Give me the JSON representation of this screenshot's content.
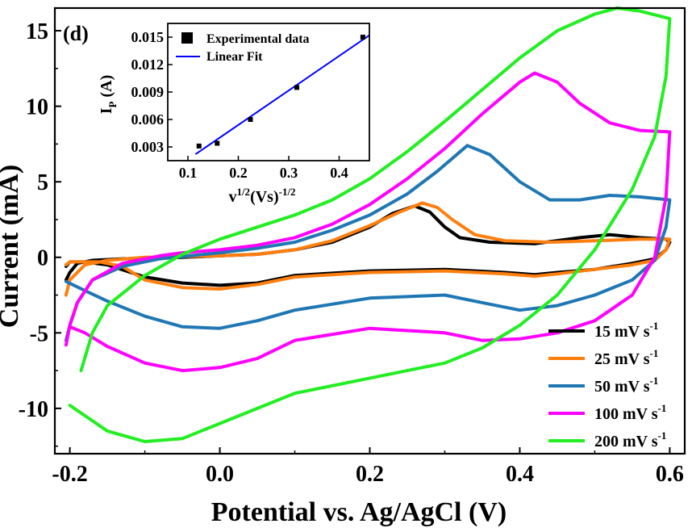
{
  "panel_label": "(d)",
  "chart_data": [
    {
      "type": "line",
      "xlabel": "Potential vs. Ag/AgCl (V)",
      "ylabel": "Current (mA)",
      "xlim": [
        -0.22,
        0.62
      ],
      "ylim": [
        -13,
        16.5
      ],
      "xticks": [
        -0.2,
        0.0,
        0.2,
        0.4,
        0.6
      ],
      "xtick_labels": [
        "-0.2",
        "0.0",
        "0.2",
        "0.4",
        "0.6"
      ],
      "yticks": [
        -10,
        -5,
        0,
        5,
        10,
        15
      ],
      "ytick_labels": [
        "-10",
        "-5",
        "0",
        "5",
        "10",
        "15"
      ],
      "legend": {
        "placement": "bottom-right"
      },
      "series": [
        {
          "name": "15 mV s",
          "sup": "-1",
          "color": "#000000",
          "points": [
            [
              -0.205,
              -1.5
            ],
            [
              -0.2,
              -1.0
            ],
            [
              -0.19,
              -0.4
            ],
            [
              -0.17,
              -0.2
            ],
            [
              -0.13,
              -0.1
            ],
            [
              -0.05,
              0.0
            ],
            [
              0.0,
              0.1
            ],
            [
              0.05,
              0.2
            ],
            [
              0.1,
              0.5
            ],
            [
              0.15,
              1.0
            ],
            [
              0.2,
              2.0
            ],
            [
              0.23,
              2.9
            ],
            [
              0.26,
              3.4
            ],
            [
              0.28,
              3.0
            ],
            [
              0.3,
              2.0
            ],
            [
              0.32,
              1.3
            ],
            [
              0.36,
              1.0
            ],
            [
              0.42,
              0.9
            ],
            [
              0.48,
              1.3
            ],
            [
              0.52,
              1.5
            ],
            [
              0.56,
              1.3
            ],
            [
              0.595,
              1.2
            ],
            [
              0.6,
              1.0
            ],
            [
              0.595,
              0.5
            ],
            [
              0.58,
              -0.1
            ],
            [
              0.55,
              -0.4
            ],
            [
              0.5,
              -0.8
            ],
            [
              0.45,
              -1.0
            ],
            [
              0.42,
              -1.15
            ],
            [
              0.38,
              -1.0
            ],
            [
              0.3,
              -0.8
            ],
            [
              0.2,
              -0.9
            ],
            [
              0.1,
              -1.2
            ],
            [
              0.05,
              -1.7
            ],
            [
              0.0,
              -1.85
            ],
            [
              -0.05,
              -1.7
            ],
            [
              -0.1,
              -1.3
            ],
            [
              -0.15,
              -0.5
            ],
            [
              -0.18,
              -0.3
            ],
            [
              -0.2,
              -0.3
            ],
            [
              -0.205,
              -0.6
            ]
          ]
        },
        {
          "name": "25 mV s",
          "sup": "-1",
          "color": "#ff7f0e",
          "points": [
            [
              -0.205,
              -2.5
            ],
            [
              -0.2,
              -1.5
            ],
            [
              -0.18,
              -0.5
            ],
            [
              -0.15,
              -0.2
            ],
            [
              -0.1,
              0.0
            ],
            [
              -0.05,
              0.05
            ],
            [
              0.0,
              0.1
            ],
            [
              0.05,
              0.2
            ],
            [
              0.1,
              0.5
            ],
            [
              0.15,
              1.1
            ],
            [
              0.2,
              2.1
            ],
            [
              0.24,
              3.0
            ],
            [
              0.27,
              3.6
            ],
            [
              0.29,
              3.3
            ],
            [
              0.31,
              2.5
            ],
            [
              0.34,
              1.5
            ],
            [
              0.38,
              1.1
            ],
            [
              0.44,
              1.0
            ],
            [
              0.5,
              1.1
            ],
            [
              0.56,
              1.2
            ],
            [
              0.6,
              1.2
            ],
            [
              0.595,
              0.5
            ],
            [
              0.58,
              -0.2
            ],
            [
              0.55,
              -0.5
            ],
            [
              0.5,
              -0.8
            ],
            [
              0.45,
              -1.1
            ],
            [
              0.42,
              -1.25
            ],
            [
              0.38,
              -1.1
            ],
            [
              0.3,
              -0.9
            ],
            [
              0.2,
              -1.0
            ],
            [
              0.1,
              -1.3
            ],
            [
              0.05,
              -1.8
            ],
            [
              0.0,
              -2.1
            ],
            [
              -0.05,
              -2.0
            ],
            [
              -0.1,
              -1.5
            ],
            [
              -0.13,
              -0.6
            ],
            [
              -0.16,
              -0.3
            ],
            [
              -0.2,
              -0.3
            ],
            [
              -0.205,
              -0.5
            ]
          ]
        },
        {
          "name": "50 mV s",
          "sup": "-1",
          "color": "#1f77b4",
          "points": [
            [
              -0.205,
              -5.5
            ],
            [
              -0.2,
              -4.5
            ],
            [
              -0.19,
              -3.0
            ],
            [
              -0.17,
              -1.5
            ],
            [
              -0.13,
              -0.6
            ],
            [
              -0.08,
              -0.1
            ],
            [
              -0.03,
              0.15
            ],
            [
              0.0,
              0.3
            ],
            [
              0.05,
              0.6
            ],
            [
              0.1,
              1.0
            ],
            [
              0.15,
              1.8
            ],
            [
              0.2,
              2.8
            ],
            [
              0.25,
              4.2
            ],
            [
              0.29,
              5.7
            ],
            [
              0.33,
              7.4
            ],
            [
              0.36,
              6.8
            ],
            [
              0.4,
              5.0
            ],
            [
              0.44,
              3.8
            ],
            [
              0.48,
              3.8
            ],
            [
              0.52,
              4.1
            ],
            [
              0.56,
              4.0
            ],
            [
              0.6,
              3.8
            ],
            [
              0.595,
              2.0
            ],
            [
              0.58,
              -0.2
            ],
            [
              0.55,
              -1.5
            ],
            [
              0.5,
              -2.5
            ],
            [
              0.45,
              -3.2
            ],
            [
              0.4,
              -3.5
            ],
            [
              0.35,
              -3.0
            ],
            [
              0.3,
              -2.5
            ],
            [
              0.2,
              -2.7
            ],
            [
              0.1,
              -3.5
            ],
            [
              0.05,
              -4.2
            ],
            [
              0.0,
              -4.7
            ],
            [
              -0.05,
              -4.6
            ],
            [
              -0.1,
              -3.9
            ],
            [
              -0.15,
              -2.9
            ],
            [
              -0.18,
              -2.2
            ],
            [
              -0.205,
              -1.6
            ]
          ]
        },
        {
          "name": "100 mV s",
          "sup": "-1",
          "color": "#ff00ff",
          "points": [
            [
              -0.205,
              -5.8
            ],
            [
              -0.2,
              -4.5
            ],
            [
              -0.19,
              -3.0
            ],
            [
              -0.17,
              -1.5
            ],
            [
              -0.13,
              -0.4
            ],
            [
              -0.08,
              0.1
            ],
            [
              -0.05,
              0.3
            ],
            [
              0.0,
              0.5
            ],
            [
              0.05,
              0.8
            ],
            [
              0.1,
              1.3
            ],
            [
              0.15,
              2.2
            ],
            [
              0.2,
              3.5
            ],
            [
              0.25,
              5.2
            ],
            [
              0.3,
              7.2
            ],
            [
              0.35,
              9.5
            ],
            [
              0.4,
              11.6
            ],
            [
              0.42,
              12.2
            ],
            [
              0.45,
              11.6
            ],
            [
              0.48,
              10.2
            ],
            [
              0.52,
              8.9
            ],
            [
              0.56,
              8.4
            ],
            [
              0.6,
              8.3
            ],
            [
              0.595,
              4.0
            ],
            [
              0.58,
              0.0
            ],
            [
              0.55,
              -2.5
            ],
            [
              0.5,
              -4.2
            ],
            [
              0.45,
              -5.0
            ],
            [
              0.4,
              -5.4
            ],
            [
              0.35,
              -5.5
            ],
            [
              0.3,
              -5.0
            ],
            [
              0.2,
              -4.7
            ],
            [
              0.1,
              -5.5
            ],
            [
              0.05,
              -6.7
            ],
            [
              0.0,
              -7.3
            ],
            [
              -0.05,
              -7.5
            ],
            [
              -0.1,
              -7.0
            ],
            [
              -0.15,
              -5.9
            ],
            [
              -0.18,
              -5.0
            ],
            [
              -0.2,
              -4.6
            ]
          ]
        },
        {
          "name": "200 mV s",
          "sup": "-1",
          "color": "#22ee22",
          "points": [
            [
              -0.185,
              -7.5
            ],
            [
              -0.17,
              -5.0
            ],
            [
              -0.15,
              -3.2
            ],
            [
              -0.1,
              -1.2
            ],
            [
              -0.05,
              0.2
            ],
            [
              0.0,
              1.2
            ],
            [
              0.05,
              2.0
            ],
            [
              0.1,
              2.8
            ],
            [
              0.15,
              3.8
            ],
            [
              0.2,
              5.2
            ],
            [
              0.25,
              7.0
            ],
            [
              0.3,
              9.0
            ],
            [
              0.35,
              11.1
            ],
            [
              0.4,
              13.2
            ],
            [
              0.45,
              15.0
            ],
            [
              0.5,
              16.1
            ],
            [
              0.53,
              16.5
            ],
            [
              0.56,
              16.3
            ],
            [
              0.6,
              15.8
            ],
            [
              0.595,
              12.0
            ],
            [
              0.58,
              8.0
            ],
            [
              0.55,
              4.5
            ],
            [
              0.5,
              0.5
            ],
            [
              0.45,
              -2.5
            ],
            [
              0.4,
              -4.5
            ],
            [
              0.35,
              -6.0
            ],
            [
              0.3,
              -7.0
            ],
            [
              0.2,
              -8.0
            ],
            [
              0.1,
              -9.0
            ],
            [
              0.05,
              -10.0
            ],
            [
              0.0,
              -11.0
            ],
            [
              -0.05,
              -12.0
            ],
            [
              -0.1,
              -12.2
            ],
            [
              -0.15,
              -11.5
            ],
            [
              -0.2,
              -9.8
            ]
          ]
        }
      ]
    },
    {
      "type": "scatter",
      "role": "inset",
      "xlabel_base": "v",
      "xlabel_base_sup": "1/2",
      "xlabel_rest": "(Vs)",
      "xlabel_rest_sup": "-1/2",
      "ylabel_base": "I",
      "ylabel_sub": "P",
      "ylabel_rest": " (A)",
      "xlim": [
        0.06,
        0.46
      ],
      "ylim": [
        0.0015,
        0.0165
      ],
      "xticks": [
        0.1,
        0.2,
        0.3,
        0.4
      ],
      "xtick_labels": [
        "0.1",
        "0.2",
        "0.3",
        "0.4"
      ],
      "yticks": [
        0.003,
        0.006,
        0.009,
        0.012,
        0.015
      ],
      "ytick_labels": [
        "0.003",
        "0.006",
        "0.009",
        "0.012",
        "0.015"
      ],
      "legend": {
        "placement": "top-left"
      },
      "series": [
        {
          "name": "Experimental data",
          "kind": "scatter",
          "color": "#000000",
          "x": [
            0.122,
            0.158,
            0.224,
            0.316,
            0.447
          ],
          "y": [
            0.0031,
            0.0034,
            0.006,
            0.0095,
            0.015
          ]
        },
        {
          "name": "Linear Fit",
          "kind": "line",
          "color": "#0000ff",
          "x": [
            0.115,
            0.46
          ],
          "y": [
            0.0022,
            0.0152
          ]
        }
      ]
    }
  ]
}
